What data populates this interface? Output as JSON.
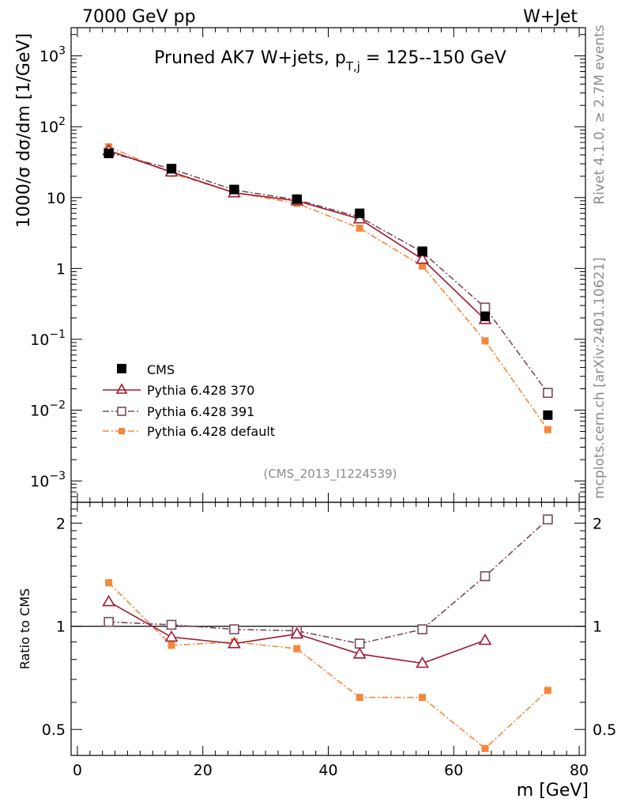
{
  "header": {
    "left": "7000 GeV pp",
    "right": "W+Jet"
  },
  "plot_title": "Pruned AK7 W+jets, p_T,j = 125--150 GeV",
  "title_parts": {
    "prefix": "Pruned AK7 W+jets, p",
    "sub": "T,j",
    "suffix": " = 125--150 GeV"
  },
  "analysis_id": "(CMS_2013_I1224539)",
  "side_text": {
    "rivet": "Rivet 4.1.0, ≥ 2.7M events",
    "mcplots": "mcplots.cern.ch [arXiv:2401.10621]"
  },
  "colors": {
    "CMS": "#000000",
    "p370": "#9e1b32",
    "p391": "#7a4a5e",
    "pdefault": "#f5873a"
  },
  "chart_data": [
    {
      "type": "line",
      "panel": "main",
      "yscale": "log",
      "xlabel": "m [GeV]",
      "ylabel": "1000/σ dσ/dm [1/GeV]",
      "xlim": [
        -1,
        81
      ],
      "ylim": [
        0.0005,
        2500
      ],
      "x_ticks": [
        0,
        20,
        40,
        60,
        80
      ],
      "x": [
        5,
        15,
        25,
        35,
        45,
        55,
        65,
        75
      ],
      "y_ticks": [
        {
          "value": 0.001,
          "base": "10",
          "exp": "−3"
        },
        {
          "value": 0.01,
          "base": "10",
          "exp": "−2"
        },
        {
          "value": 0.1,
          "base": "10",
          "exp": "−1"
        },
        {
          "value": 1,
          "base": "1",
          "exp": ""
        },
        {
          "value": 10,
          "base": "10",
          "exp": ""
        },
        {
          "value": 100,
          "base": "10",
          "exp": "2"
        },
        {
          "value": 1000,
          "base": "10",
          "exp": "3"
        }
      ],
      "series": [
        {
          "name": "CMS",
          "key": "CMS",
          "values": [
            42,
            25.5,
            13,
            9.5,
            6,
            1.75,
            0.21,
            0.0085
          ]
        },
        {
          "name": "Pythia 6.428 370",
          "key": "p370",
          "values": [
            46,
            23,
            11.7,
            9,
            5,
            1.35,
            0.19,
            null
          ]
        },
        {
          "name": "Pythia 6.428 391",
          "key": "p391",
          "values": [
            43,
            25.5,
            12.8,
            9.3,
            5.3,
            1.7,
            0.28,
            0.0175
          ]
        },
        {
          "name": "Pythia 6.428 default",
          "key": "pdefault",
          "values": [
            52,
            22,
            11.8,
            8.3,
            3.7,
            1.08,
            0.095,
            0.0053
          ]
        }
      ]
    },
    {
      "type": "line",
      "panel": "ratio",
      "yscale": "log",
      "ylabel": "Ratio to CMS",
      "ylim": [
        0.42,
        2.3
      ],
      "x": [
        5,
        15,
        25,
        35,
        45,
        55,
        65,
        75
      ],
      "y_ticks": [
        0.5,
        1,
        2
      ],
      "y_tick_labels": [
        "0.5",
        "1",
        "2"
      ],
      "series": [
        {
          "name": "Pythia 6.428 370",
          "key": "p370",
          "values": [
            1.18,
            0.93,
            0.89,
            0.95,
            0.83,
            0.78,
            0.91,
            null
          ]
        },
        {
          "name": "Pythia 6.428 391",
          "key": "p391",
          "values": [
            1.03,
            1.01,
            0.98,
            0.97,
            0.89,
            0.98,
            1.4,
            2.05
          ]
        },
        {
          "name": "Pythia 6.428 default",
          "key": "pdefault",
          "values": [
            1.34,
            0.88,
            0.9,
            0.86,
            0.62,
            0.62,
            0.44,
            0.65
          ]
        }
      ]
    }
  ]
}
